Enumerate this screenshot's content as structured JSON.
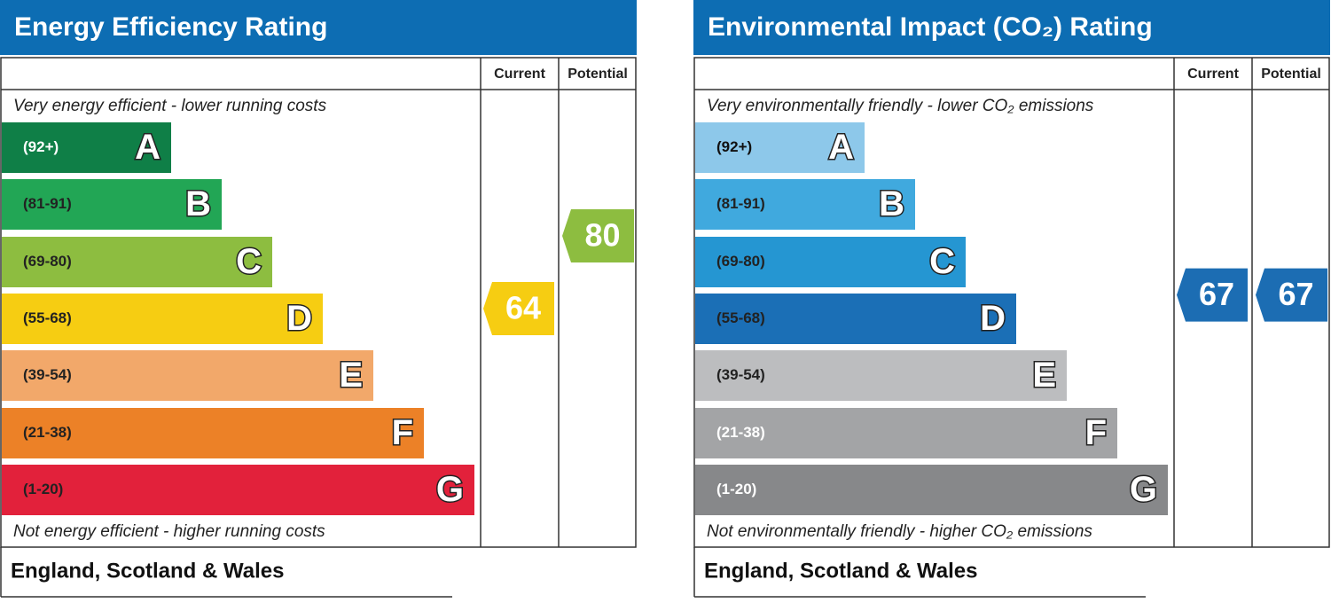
{
  "chart_data": [
    {
      "type": "rating",
      "title": "Energy Efficiency Rating",
      "column_labels": [
        "Current",
        "Potential"
      ],
      "top_note": "Very energy efficient - lower running costs",
      "bottom_note": "Not energy efficient - higher running costs",
      "bands": [
        {
          "range": "(92+)",
          "letter": "A",
          "color": "#0f7f47",
          "text_color": "#ffffff"
        },
        {
          "range": "(81-91)",
          "letter": "B",
          "color": "#22a655",
          "text_color": "#222222"
        },
        {
          "range": "(69-80)",
          "letter": "C",
          "color": "#8dbd40",
          "text_color": "#222222"
        },
        {
          "range": "(55-68)",
          "letter": "D",
          "color": "#f6cd12",
          "text_color": "#222222"
        },
        {
          "range": "(39-54)",
          "letter": "E",
          "color": "#f2a86a",
          "text_color": "#222222"
        },
        {
          "range": "(21-38)",
          "letter": "F",
          "color": "#ec8127",
          "text_color": "#222222"
        },
        {
          "range": "(1-20)",
          "letter": "G",
          "color": "#e2213b",
          "text_color": "#222222"
        }
      ],
      "current": 64,
      "potential": 80,
      "current_color": "#f6cd12",
      "potential_color": "#8dbd40",
      "footer": "England, Scotland & Wales"
    },
    {
      "type": "rating",
      "title": "Environmental Impact (CO₂) Rating",
      "column_labels": [
        "Current",
        "Potential"
      ],
      "top_note": "Very environmentally friendly - lower CO₂ emissions",
      "bottom_note": "Not environmentally friendly - higher CO₂ emissions",
      "bands": [
        {
          "range": "(92+)",
          "letter": "A",
          "color": "#8dc8ea",
          "text_color": "#111111"
        },
        {
          "range": "(81-91)",
          "letter": "B",
          "color": "#40a9de",
          "text_color": "#222222"
        },
        {
          "range": "(69-80)",
          "letter": "C",
          "color": "#2596d2",
          "text_color": "#222222"
        },
        {
          "range": "(55-68)",
          "letter": "D",
          "color": "#1b6fb6",
          "text_color": "#222222"
        },
        {
          "range": "(39-54)",
          "letter": "E",
          "color": "#bcbdbf",
          "text_color": "#222222"
        },
        {
          "range": "(21-38)",
          "letter": "F",
          "color": "#a3a4a6",
          "text_color": "#ffffff"
        },
        {
          "range": "(1-20)",
          "letter": "G",
          "color": "#87888a",
          "text_color": "#ffffff"
        }
      ],
      "current": 67,
      "potential": 67,
      "current_color": "#1c6db3",
      "potential_color": "#1c6db3",
      "footer": "England, Scotland & Wales"
    }
  ]
}
